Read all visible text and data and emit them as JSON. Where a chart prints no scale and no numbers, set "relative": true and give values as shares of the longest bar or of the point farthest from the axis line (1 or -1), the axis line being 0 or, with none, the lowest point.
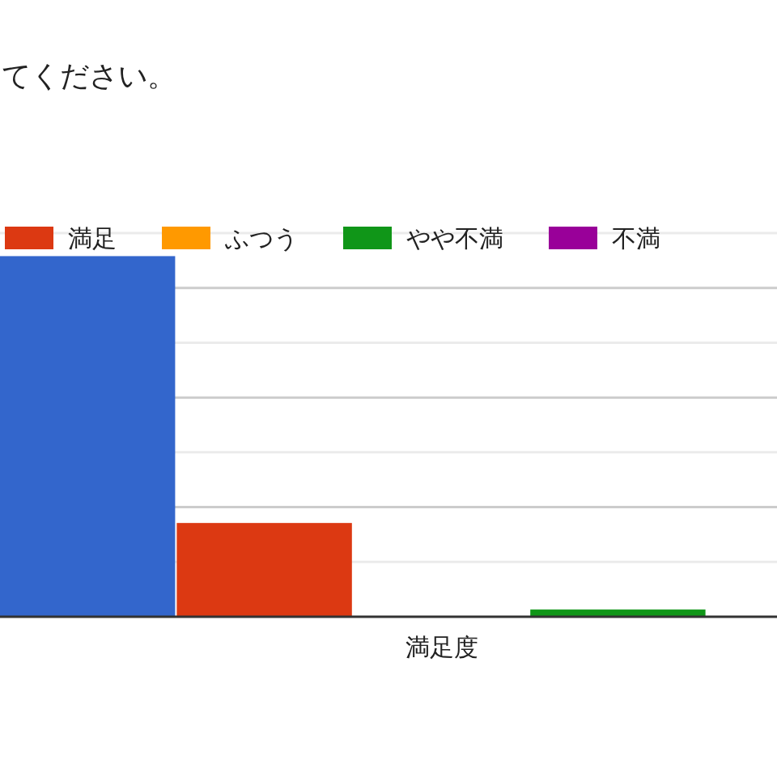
{
  "chart_data": {
    "type": "bar",
    "title": "てください。",
    "xlabel": "満足度",
    "categories": [
      null
    ],
    "relative": true,
    "series": [
      {
        "color": "#3366cc",
        "values": [
          1
        ]
      },
      {
        "name": "満足",
        "color": "#dc3912",
        "values": [
          0.26
        ]
      },
      {
        "name": "ふつう",
        "color": "#ff9900",
        "values": [
          0
        ]
      },
      {
        "name": "やや不満",
        "color": "#109618",
        "values": [
          0.02
        ]
      },
      {
        "name": "不満",
        "color": "#990099",
        "values": [
          0
        ]
      }
    ],
    "grid": "y",
    "legend": "top"
  }
}
